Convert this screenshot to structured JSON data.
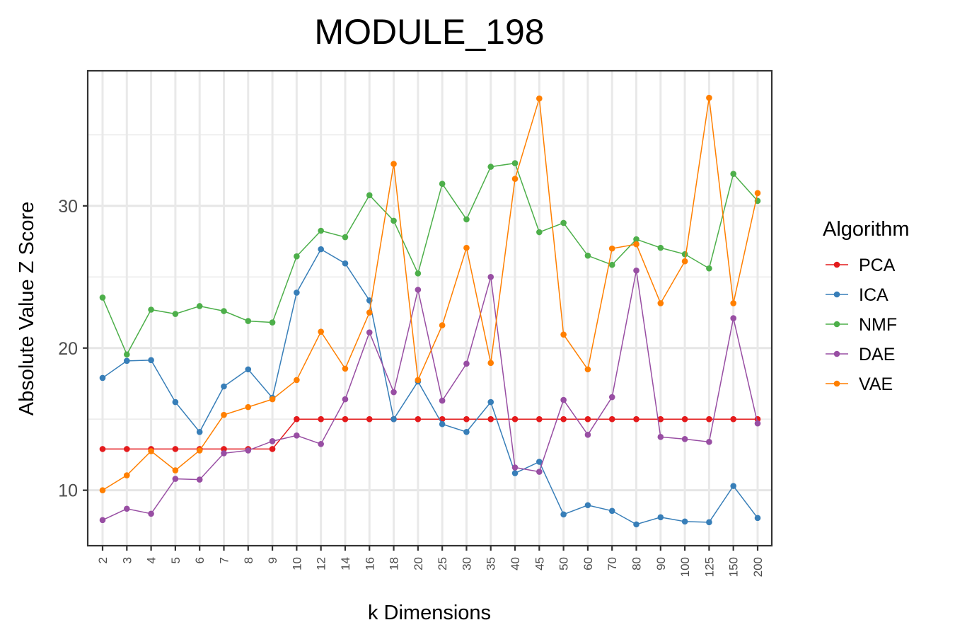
{
  "chart_data": {
    "type": "line",
    "title": "MODULE_198",
    "xlabel": "k Dimensions",
    "ylabel": "Absolute Value Z Score",
    "categories": [
      "2",
      "3",
      "4",
      "5",
      "6",
      "7",
      "8",
      "9",
      "10",
      "12",
      "14",
      "16",
      "18",
      "20",
      "25",
      "30",
      "35",
      "40",
      "45",
      "50",
      "60",
      "70",
      "80",
      "90",
      "100",
      "125",
      "150",
      "200"
    ],
    "ylim": [
      6.1,
      39.5
    ],
    "yticks": [
      10,
      20,
      30
    ],
    "grid": true,
    "legend": {
      "title": "Algorithm",
      "position": "right"
    },
    "series": [
      {
        "name": "PCA",
        "color": "#e41a1c",
        "values": [
          12.9,
          12.9,
          12.9,
          12.9,
          12.9,
          12.9,
          12.9,
          12.9,
          15.0,
          15.0,
          15.0,
          15.0,
          15.0,
          15.0,
          15.0,
          15.0,
          15.0,
          15.0,
          15.0,
          15.0,
          15.0,
          15.0,
          15.0,
          15.0,
          15.0,
          15.0,
          15.0,
          15.0
        ]
      },
      {
        "name": "ICA",
        "color": "#377eb8",
        "values": [
          17.9,
          19.1,
          19.15,
          16.2,
          14.1,
          17.3,
          18.5,
          16.5,
          23.9,
          26.95,
          25.95,
          23.35,
          15.0,
          17.65,
          14.65,
          14.1,
          16.2,
          11.2,
          12.0,
          8.3,
          8.95,
          8.55,
          7.6,
          8.1,
          7.8,
          7.75,
          10.3,
          8.05
        ]
      },
      {
        "name": "NMF",
        "color": "#4daf4a",
        "values": [
          23.55,
          19.55,
          22.7,
          22.4,
          22.95,
          22.6,
          21.9,
          21.8,
          26.45,
          28.25,
          27.8,
          30.75,
          28.95,
          25.25,
          31.55,
          29.05,
          32.75,
          33.0,
          28.15,
          28.8,
          26.5,
          25.85,
          27.65,
          27.05,
          26.6,
          25.6,
          32.25,
          30.35
        ]
      },
      {
        "name": "DAE",
        "color": "#984ea3",
        "values": [
          7.9,
          8.7,
          8.35,
          10.8,
          10.75,
          12.6,
          12.8,
          13.45,
          13.85,
          13.25,
          16.4,
          21.1,
          16.9,
          24.1,
          16.3,
          18.9,
          25.0,
          11.6,
          11.3,
          16.35,
          13.9,
          16.55,
          25.45,
          13.75,
          13.6,
          13.4,
          22.1,
          14.7
        ]
      },
      {
        "name": "VAE",
        "color": "#ff7f00",
        "values": [
          10.0,
          11.05,
          12.75,
          11.4,
          12.8,
          15.3,
          15.85,
          16.4,
          17.75,
          21.15,
          18.55,
          22.5,
          32.95,
          17.75,
          21.6,
          27.05,
          18.95,
          31.9,
          37.55,
          20.95,
          18.5,
          27.0,
          27.3,
          23.15,
          26.1,
          37.6,
          23.15,
          30.9
        ]
      }
    ]
  }
}
